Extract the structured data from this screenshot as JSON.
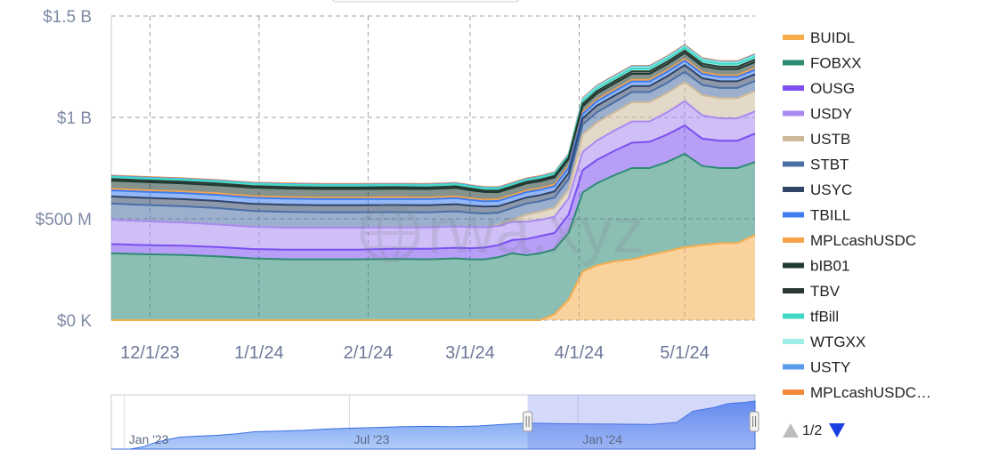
{
  "chart_data": {
    "type": "area",
    "stacked": true,
    "watermark": "rwa.xyz",
    "y_tick_labels": [
      "$0 K",
      "$500 M",
      "$1 B",
      "$1.5 B"
    ],
    "y_tick_values": [
      0,
      500,
      1000,
      1500
    ],
    "y_unit": "millions USD",
    "ylim": [
      0,
      1500
    ],
    "x_tick_labels": [
      "12/1/23",
      "1/1/24",
      "2/1/24",
      "3/1/24",
      "4/1/24",
      "5/1/24"
    ],
    "x_tick_positions": [
      1,
      32,
      63,
      92,
      123,
      153
    ],
    "x_range": [
      -10,
      173
    ],
    "x_note": "x values are day offsets from 11/30/23",
    "x": [
      -10,
      0,
      10,
      20,
      30,
      40,
      50,
      60,
      70,
      80,
      88,
      92,
      96,
      100,
      104,
      108,
      112,
      116,
      120,
      124,
      128,
      133,
      138,
      143,
      148,
      153,
      158,
      163,
      168,
      173
    ],
    "series": [
      {
        "name": "BUIDL",
        "color": "#f5ad4c",
        "values": [
          0,
          0,
          0,
          0,
          0,
          0,
          0,
          0,
          0,
          0,
          0,
          0,
          0,
          0,
          0,
          0,
          0,
          30,
          100,
          240,
          270,
          290,
          300,
          320,
          340,
          360,
          370,
          380,
          380,
          420
        ]
      },
      {
        "name": "FOBXX",
        "color": "#2e8b74",
        "values": [
          330,
          325,
          322,
          315,
          305,
          300,
          300,
          300,
          302,
          300,
          305,
          300,
          300,
          310,
          330,
          320,
          330,
          320,
          330,
          390,
          405,
          425,
          450,
          430,
          440,
          460,
          390,
          370,
          370,
          360
        ]
      },
      {
        "name": "OUSG",
        "color": "#7b4ff0",
        "values": [
          45,
          45,
          45,
          46,
          46,
          48,
          48,
          48,
          50,
          52,
          52,
          55,
          58,
          60,
          65,
          80,
          85,
          80,
          90,
          110,
          115,
          120,
          125,
          130,
          135,
          140,
          135,
          135,
          135,
          140
        ]
      },
      {
        "name": "USDY",
        "color": "#a98af0",
        "values": [
          120,
          118,
          115,
          112,
          110,
          108,
          108,
          108,
          105,
          105,
          105,
          105,
          100,
          95,
          90,
          85,
          80,
          80,
          80,
          90,
          95,
          100,
          105,
          100,
          110,
          120,
          115,
          110,
          110,
          110
        ]
      },
      {
        "name": "USTB",
        "color": "#cdb99a",
        "values": [
          0,
          0,
          0,
          0,
          0,
          0,
          0,
          0,
          0,
          0,
          0,
          0,
          0,
          5,
          10,
          35,
          40,
          45,
          45,
          85,
          90,
          90,
          95,
          95,
          95,
          95,
          100,
          100,
          100,
          100
        ]
      },
      {
        "name": "STBT",
        "color": "#4a6fa5",
        "values": [
          80,
          80,
          80,
          80,
          78,
          78,
          76,
          76,
          76,
          75,
          75,
          70,
          68,
          60,
          58,
          55,
          52,
          50,
          50,
          50,
          50,
          50,
          50,
          50,
          50,
          50,
          50,
          50,
          50,
          50
        ]
      },
      {
        "name": "USYC",
        "color": "#2f4466",
        "values": [
          35,
          35,
          35,
          35,
          35,
          35,
          35,
          35,
          35,
          35,
          35,
          35,
          34,
          32,
          30,
          30,
          30,
          30,
          30,
          30,
          32,
          32,
          30,
          30,
          32,
          33,
          33,
          33,
          33,
          33
        ]
      },
      {
        "name": "TBILL",
        "color": "#3d7df0",
        "values": [
          30,
          30,
          30,
          30,
          30,
          30,
          30,
          30,
          30,
          30,
          30,
          28,
          26,
          26,
          26,
          26,
          26,
          26,
          26,
          22,
          22,
          22,
          22,
          22,
          22,
          22,
          22,
          22,
          22,
          22
        ]
      },
      {
        "name": "MPLcashUSDC",
        "color": "#f7a24a",
        "values": [
          8,
          8,
          8,
          8,
          8,
          8,
          8,
          8,
          8,
          8,
          8,
          8,
          8,
          8,
          8,
          8,
          8,
          8,
          8,
          8,
          8,
          8,
          8,
          8,
          8,
          8,
          8,
          8,
          8,
          8
        ]
      },
      {
        "name": "bIB01",
        "color": "#1f3a32",
        "values": [
          40,
          40,
          40,
          40,
          42,
          42,
          42,
          42,
          42,
          42,
          42,
          40,
          38,
          35,
          35,
          35,
          35,
          35,
          35,
          30,
          30,
          30,
          30,
          30,
          30,
          30,
          30,
          30,
          30,
          30
        ]
      },
      {
        "name": "TBV",
        "color": "#2a3a33",
        "values": [
          8,
          8,
          8,
          8,
          8,
          8,
          8,
          8,
          8,
          8,
          8,
          8,
          8,
          8,
          8,
          8,
          8,
          8,
          8,
          12,
          12,
          12,
          12,
          12,
          12,
          12,
          12,
          12,
          12,
          12
        ]
      },
      {
        "name": "tfBill",
        "color": "#3fd9c5",
        "values": [
          10,
          10,
          10,
          10,
          10,
          10,
          10,
          10,
          10,
          10,
          10,
          10,
          10,
          10,
          10,
          10,
          10,
          10,
          10,
          14,
          14,
          14,
          14,
          14,
          14,
          14,
          14,
          14,
          14,
          14
        ]
      },
      {
        "name": "WTGXX",
        "color": "#9feee6",
        "values": [
          0,
          0,
          0,
          0,
          0,
          0,
          0,
          0,
          0,
          0,
          0,
          0,
          0,
          0,
          0,
          0,
          0,
          0,
          0,
          6,
          6,
          6,
          6,
          6,
          6,
          6,
          6,
          6,
          6,
          6
        ]
      },
      {
        "name": "USTY",
        "color": "#5a9bea",
        "values": [
          4,
          4,
          4,
          4,
          4,
          4,
          4,
          4,
          4,
          4,
          4,
          4,
          4,
          4,
          4,
          4,
          4,
          4,
          4,
          4,
          4,
          4,
          4,
          4,
          4,
          4,
          4,
          4,
          4,
          4
        ]
      },
      {
        "name": "MPLcashUSDC…",
        "color": "#f58a3a",
        "values": [
          3,
          3,
          3,
          3,
          3,
          3,
          3,
          3,
          3,
          3,
          3,
          3,
          3,
          3,
          3,
          3,
          3,
          3,
          3,
          3,
          3,
          3,
          3,
          3,
          3,
          3,
          3,
          3,
          3,
          3
        ]
      }
    ],
    "navigator": {
      "labels": [
        "Jan '23",
        "Jul '23",
        "Jan '24"
      ],
      "label_days": [
        -333,
        -152,
        32
      ],
      "range_days": [
        -345,
        173
      ],
      "selected_range_days": [
        -10,
        173
      ],
      "totals_x": [
        -345,
        -330,
        -320,
        -310,
        -300,
        -290,
        -275,
        -260,
        -245,
        -230,
        -210,
        -190,
        -170,
        -150,
        -130,
        -110,
        -90,
        -70,
        -50,
        -30,
        -10,
        20,
        60,
        90,
        110,
        123,
        140,
        150,
        155,
        165,
        173
      ],
      "totals": [
        0,
        0,
        60,
        180,
        260,
        330,
        360,
        380,
        420,
        480,
        500,
        520,
        560,
        580,
        600,
        620,
        630,
        620,
        640,
        680,
        720,
        700,
        690,
        680,
        740,
        1050,
        1150,
        1250,
        1270,
        1290,
        1330
      ]
    },
    "legend": {
      "position": "right",
      "page": "1/2"
    },
    "grid": true
  }
}
